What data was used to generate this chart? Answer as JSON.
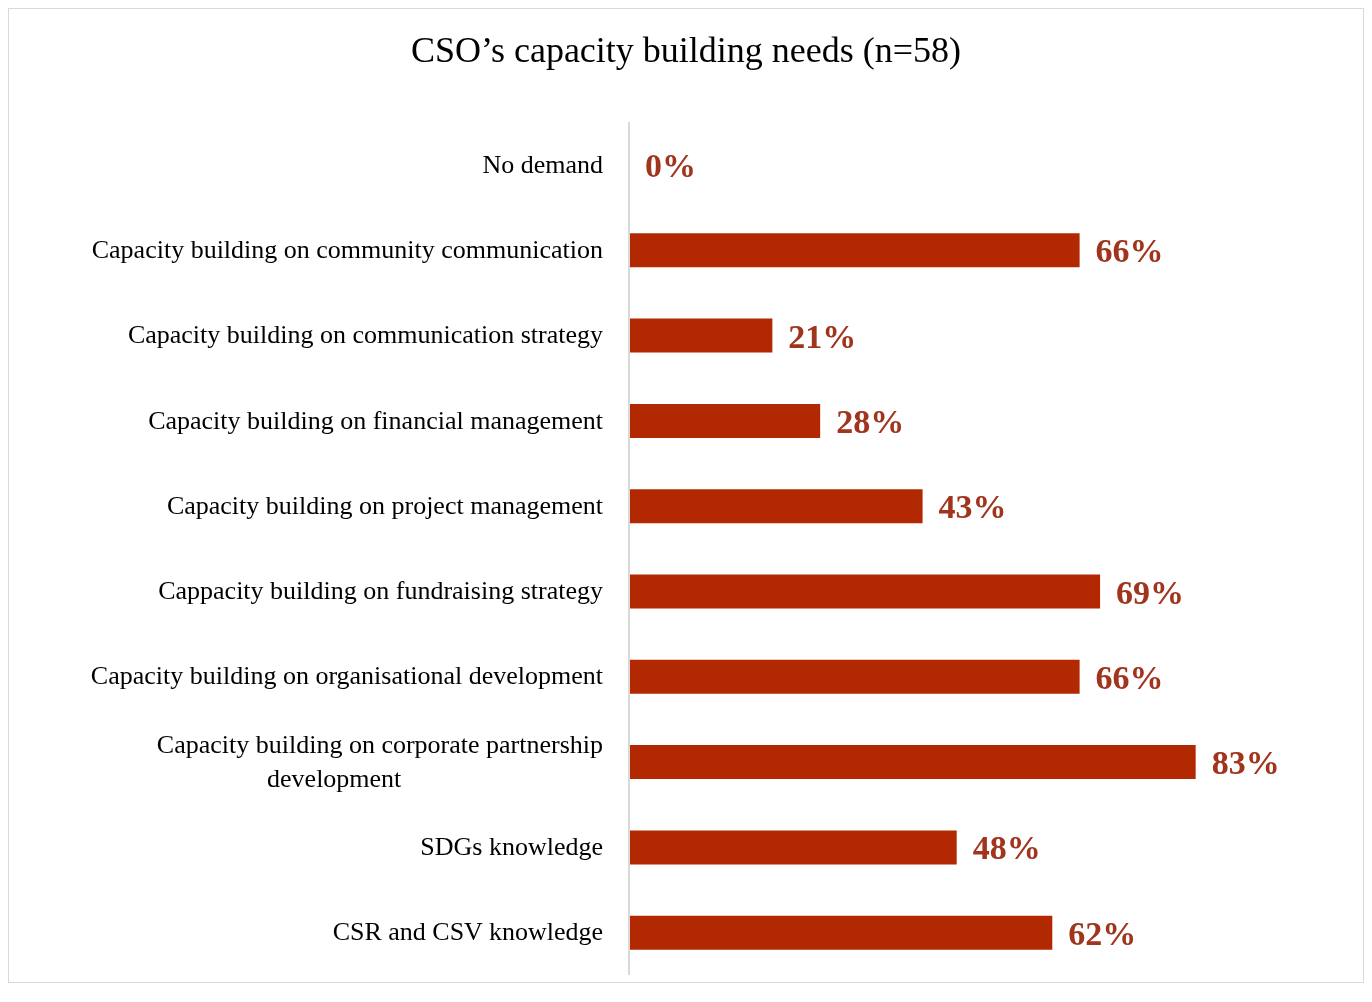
{
  "chart_data": {
    "type": "bar",
    "orientation": "horizontal",
    "title": "CSO’s capacity building needs (n=58)",
    "categories": [
      "No demand",
      "Capacity building on community communication",
      "Capacity building on communication strategy",
      "Capacity building on financial management",
      "Capacity building on project management",
      "Cappacity building on fundraising strategy",
      "Capacity building on organisational development",
      "Capacity building on corporate partnership development",
      "SDGs knowledge",
      "CSR and CSV knowledge"
    ],
    "values": [
      0,
      66,
      21,
      28,
      43,
      69,
      66,
      83,
      48,
      62
    ],
    "value_labels": [
      "0%",
      "66%",
      "21%",
      "28%",
      "43%",
      "69%",
      "66%",
      "83%",
      "48%",
      "62%"
    ],
    "color": "#b22800"
  }
}
